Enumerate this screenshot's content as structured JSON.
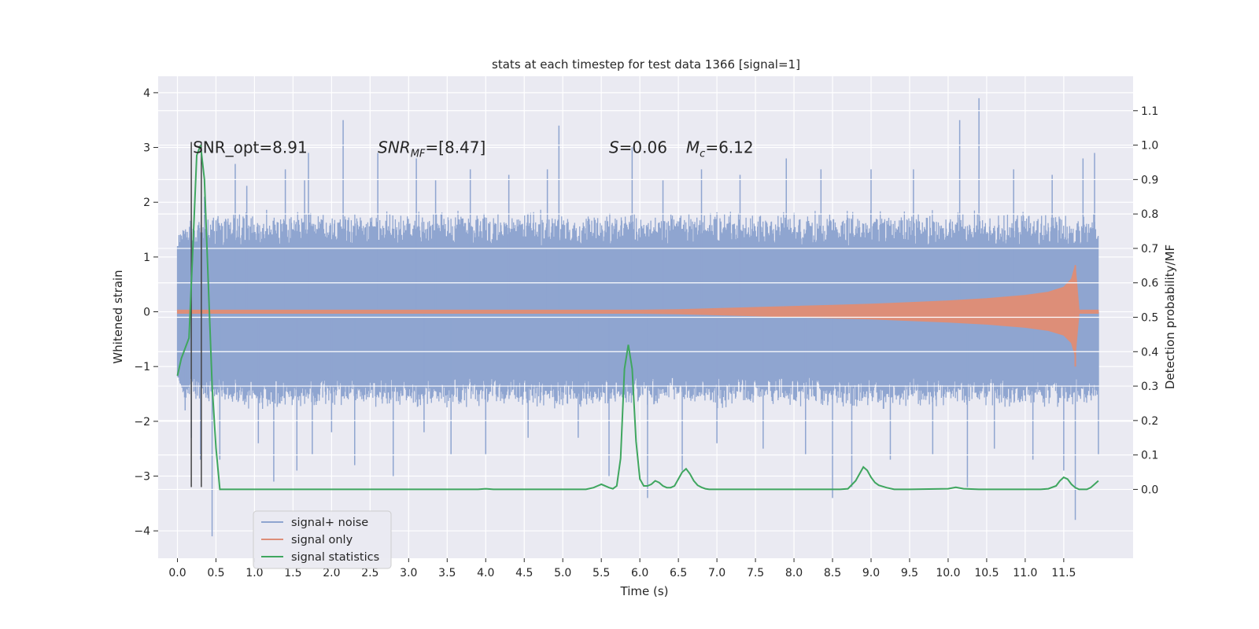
{
  "chart_data": {
    "type": "line",
    "title": "stats at each timestep for test data 1366 [signal=1]",
    "xlabel": "Time (s)",
    "ylabel_left": "Whitened strain",
    "ylabel_right": "Detection probability/MF",
    "xlim": [
      -0.25,
      12.4
    ],
    "ylim_left": [
      -4.5,
      4.3
    ],
    "ylim_right": [
      -0.2,
      1.2
    ],
    "x_ticks": [
      0.0,
      0.5,
      1.0,
      1.5,
      2.0,
      2.5,
      3.0,
      3.5,
      4.0,
      4.5,
      5.0,
      5.5,
      6.0,
      6.5,
      7.0,
      7.5,
      8.0,
      8.5,
      9.0,
      9.5,
      10.0,
      10.5,
      11.0,
      11.5
    ],
    "y_ticks_left": [
      -4,
      -3,
      -2,
      -1,
      0,
      1,
      2,
      3,
      4
    ],
    "y_ticks_right": [
      0.0,
      0.1,
      0.2,
      0.3,
      0.4,
      0.5,
      0.6,
      0.7,
      0.8,
      0.9,
      1.0,
      1.1
    ],
    "grid": true,
    "legend_position": "lower-left",
    "colors": {
      "background": "#eaeaf2",
      "grid": "#ffffff",
      "noise": "#8fa5d0",
      "signal": "#dd8e78",
      "stats": "#3fa65f",
      "vline": "#444444"
    },
    "noise_envelope": {
      "x": [
        0.0,
        0.05,
        0.3,
        1.0,
        2.0,
        3.0,
        4.0,
        5.0,
        6.0,
        7.0,
        8.0,
        9.0,
        10.0,
        10.5,
        11.0,
        11.5,
        11.95
      ],
      "upper": [
        1.0,
        1.6,
        1.8,
        1.9,
        1.85,
        1.9,
        1.85,
        1.9,
        1.85,
        1.9,
        1.85,
        1.9,
        1.9,
        1.9,
        1.9,
        1.85,
        1.8
      ],
      "lower": [
        -1.0,
        -1.6,
        -1.7,
        -1.8,
        -1.75,
        -1.8,
        -1.75,
        -1.8,
        -1.75,
        -1.8,
        -1.75,
        -1.8,
        -1.75,
        -1.8,
        -1.75,
        -1.8,
        -1.7
      ]
    },
    "noise_core": 1.2,
    "noise_spikes": [
      [
        0.02,
        1.4
      ],
      [
        0.1,
        -1.8
      ],
      [
        0.18,
        -2.3
      ],
      [
        0.3,
        -2.7
      ],
      [
        0.35,
        2.1
      ],
      [
        0.45,
        -4.1
      ],
      [
        0.55,
        -2.7
      ],
      [
        0.75,
        2.7
      ],
      [
        0.9,
        2.3
      ],
      [
        1.05,
        -2.4
      ],
      [
        1.25,
        -3.1
      ],
      [
        1.4,
        2.6
      ],
      [
        1.55,
        -2.9
      ],
      [
        1.65,
        2.4
      ],
      [
        1.7,
        2.9
      ],
      [
        1.75,
        -2.6
      ],
      [
        2.0,
        -2.2
      ],
      [
        2.15,
        3.5
      ],
      [
        2.3,
        -2.8
      ],
      [
        2.6,
        2.9
      ],
      [
        2.8,
        -3.0
      ],
      [
        3.1,
        2.8
      ],
      [
        3.2,
        -2.2
      ],
      [
        3.35,
        2.4
      ],
      [
        3.55,
        -2.6
      ],
      [
        3.8,
        2.6
      ],
      [
        4.0,
        -2.6
      ],
      [
        4.3,
        2.5
      ],
      [
        4.55,
        -2.3
      ],
      [
        4.8,
        2.6
      ],
      [
        4.95,
        3.4
      ],
      [
        5.2,
        -2.3
      ],
      [
        5.6,
        -3.0
      ],
      [
        5.9,
        3.0
      ],
      [
        6.1,
        -3.4
      ],
      [
        6.3,
        2.4
      ],
      [
        6.55,
        -2.9
      ],
      [
        6.8,
        2.6
      ],
      [
        7.0,
        -2.4
      ],
      [
        7.3,
        2.5
      ],
      [
        7.6,
        -2.5
      ],
      [
        7.9,
        2.8
      ],
      [
        8.15,
        -2.6
      ],
      [
        8.35,
        2.6
      ],
      [
        8.5,
        -3.4
      ],
      [
        8.75,
        -3.2
      ],
      [
        9.0,
        2.6
      ],
      [
        9.25,
        -2.7
      ],
      [
        9.55,
        2.6
      ],
      [
        9.8,
        -2.6
      ],
      [
        10.15,
        3.5
      ],
      [
        10.25,
        -3.2
      ],
      [
        10.4,
        3.9
      ],
      [
        10.6,
        -2.5
      ],
      [
        10.85,
        2.6
      ],
      [
        11.1,
        -2.7
      ],
      [
        11.35,
        2.5
      ],
      [
        11.5,
        -2.9
      ],
      [
        11.65,
        -3.8
      ],
      [
        11.75,
        2.8
      ],
      [
        11.9,
        2.9
      ],
      [
        11.95,
        -2.6
      ]
    ],
    "signal_envelope": {
      "x": [
        0.0,
        5.0,
        6.0,
        6.5,
        7.0,
        7.5,
        8.0,
        8.5,
        9.0,
        9.5,
        10.0,
        10.5,
        11.0,
        11.3,
        11.5,
        11.6,
        11.65,
        11.7,
        11.95
      ],
      "amplitude": [
        0.03,
        0.03,
        0.03,
        0.04,
        0.06,
        0.08,
        0.1,
        0.12,
        0.14,
        0.17,
        0.2,
        0.24,
        0.3,
        0.36,
        0.45,
        0.6,
        0.85,
        0.03,
        0.03
      ]
    },
    "series": [
      {
        "name": "signal statistics",
        "axis": "right",
        "x": [
          0.0,
          0.05,
          0.1,
          0.15,
          0.2,
          0.25,
          0.3,
          0.35,
          0.4,
          0.45,
          0.5,
          0.55,
          1.0,
          2.0,
          3.0,
          3.9,
          4.0,
          4.1,
          5.0,
          5.2,
          5.3,
          5.4,
          5.5,
          5.6,
          5.65,
          5.7,
          5.75,
          5.8,
          5.85,
          5.9,
          5.95,
          6.0,
          6.05,
          6.1,
          6.15,
          6.2,
          6.25,
          6.3,
          6.35,
          6.4,
          6.45,
          6.5,
          6.55,
          6.6,
          6.65,
          6.7,
          6.75,
          6.8,
          6.85,
          6.9,
          7.0,
          7.1,
          8.0,
          8.6,
          8.7,
          8.8,
          8.9,
          8.95,
          9.0,
          9.05,
          9.1,
          9.2,
          9.3,
          9.5,
          10.0,
          10.1,
          10.2,
          10.4,
          11.0,
          11.2,
          11.3,
          11.4,
          11.45,
          11.5,
          11.55,
          11.6,
          11.65,
          11.7,
          11.8,
          11.85,
          11.9,
          11.95
        ],
        "values": [
          0.33,
          0.38,
          0.41,
          0.44,
          0.7,
          0.97,
          1.0,
          0.9,
          0.6,
          0.3,
          0.12,
          0.0,
          0.0,
          0.0,
          0.0,
          0.0,
          0.002,
          0.0,
          0.0,
          0.0,
          0.0,
          0.005,
          0.015,
          0.005,
          0.002,
          0.01,
          0.09,
          0.35,
          0.42,
          0.35,
          0.14,
          0.03,
          0.01,
          0.01,
          0.015,
          0.025,
          0.02,
          0.01,
          0.005,
          0.005,
          0.01,
          0.03,
          0.05,
          0.06,
          0.045,
          0.025,
          0.012,
          0.006,
          0.002,
          0.0,
          0.0,
          0.0,
          0.0,
          0.0,
          0.002,
          0.025,
          0.065,
          0.055,
          0.035,
          0.02,
          0.012,
          0.005,
          0.0,
          0.0,
          0.002,
          0.006,
          0.002,
          0.0,
          0.0,
          0.0,
          0.002,
          0.01,
          0.025,
          0.035,
          0.03,
          0.015,
          0.005,
          0.0,
          0.0,
          0.005,
          0.015,
          0.025
        ]
      }
    ],
    "vlines": [
      0.18,
      0.31
    ],
    "vline_ymax_left": 3.1,
    "vline_ymin_left": -3.2,
    "annotations": [
      {
        "x": 0.2,
        "y": 3.0,
        "text": "SNR_opt=8.91"
      },
      {
        "x": 2.6,
        "y": 3.0,
        "text": "SNR",
        "sub": "MF",
        "rest": "=[8.47]"
      },
      {
        "x": 5.6,
        "y": 3.0,
        "text": "S",
        "rest": "=0.06"
      },
      {
        "x": 6.6,
        "y": 3.0,
        "text": "M",
        "sub": "c",
        "rest": "=6.12"
      }
    ],
    "legend": [
      "signal+ noise",
      "signal only",
      "signal statistics"
    ]
  }
}
